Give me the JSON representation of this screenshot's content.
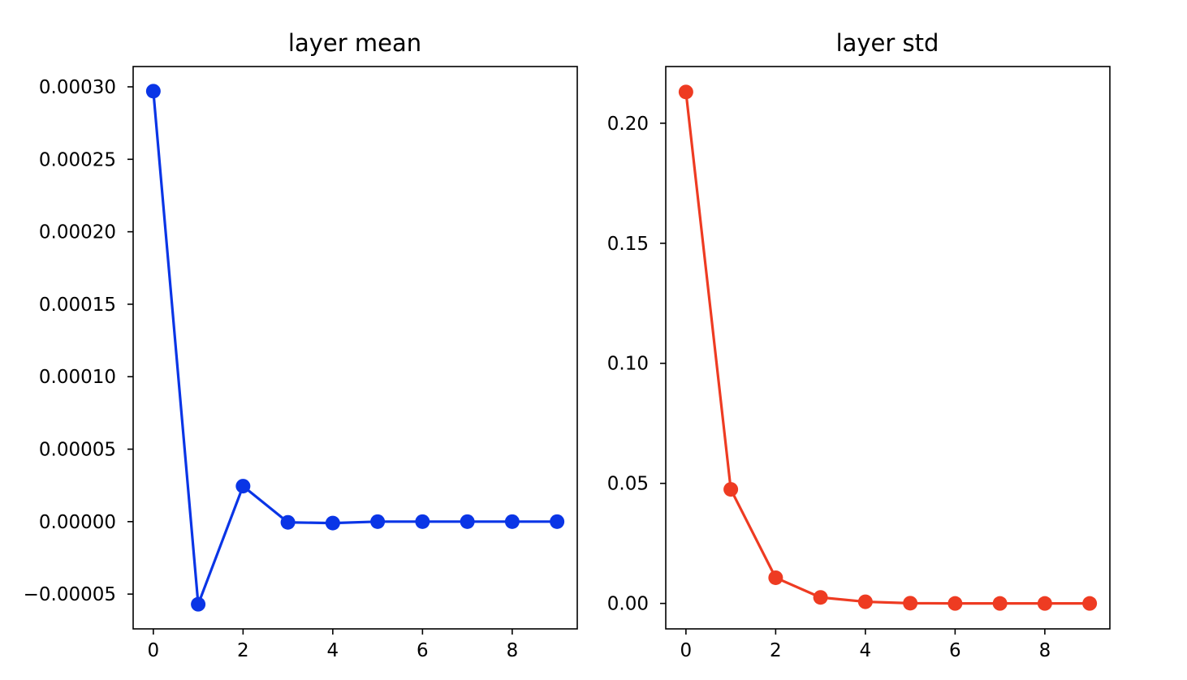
{
  "chart_data": [
    {
      "type": "line",
      "title": "layer mean",
      "xlabel": "",
      "ylabel": "",
      "color": "#0a35e6",
      "marker": "circle",
      "grid": false,
      "xlim": [
        -0.45,
        9.45
      ],
      "ylim": [
        -7.4e-05,
        0.000314
      ],
      "xticks": [
        0,
        2,
        4,
        6,
        8
      ],
      "xtick_labels": [
        "0",
        "2",
        "4",
        "6",
        "8"
      ],
      "yticks": [
        -5e-05,
        0,
        5e-05,
        0.0001,
        0.00015,
        0.0002,
        0.00025,
        0.0003
      ],
      "ytick_labels": [
        "−0.00005",
        "0.00000",
        "0.00005",
        "0.00010",
        "0.00015",
        "0.00020",
        "0.00025",
        "0.00030"
      ],
      "series": [
        {
          "x": [
            0,
            1,
            2,
            3,
            4,
            5,
            6,
            7,
            8,
            9
          ],
          "y": [
            0.000297,
            -5.7e-05,
            2.45e-05,
            -5e-07,
            -1e-06,
            0.0,
            0.0,
            0.0,
            0.0,
            0.0
          ]
        }
      ]
    },
    {
      "type": "line",
      "title": "layer std",
      "xlabel": "",
      "ylabel": "",
      "color": "#ee3b22",
      "marker": "circle",
      "grid": false,
      "xlim": [
        -0.45,
        9.45
      ],
      "ylim": [
        -0.0106,
        0.2236
      ],
      "xticks": [
        0,
        2,
        4,
        6,
        8
      ],
      "xtick_labels": [
        "0",
        "2",
        "4",
        "6",
        "8"
      ],
      "yticks": [
        0,
        0.05,
        0.1,
        0.15,
        0.2
      ],
      "ytick_labels": [
        "0.00",
        "0.05",
        "0.10",
        "0.15",
        "0.20"
      ],
      "series": [
        {
          "x": [
            0,
            1,
            2,
            3,
            4,
            5,
            6,
            7,
            8,
            9
          ],
          "y": [
            0.213,
            0.0475,
            0.0107,
            0.0025,
            0.0007,
            0.0001,
            0.0,
            0.0,
            0.0,
            0.0
          ]
        }
      ]
    }
  ]
}
